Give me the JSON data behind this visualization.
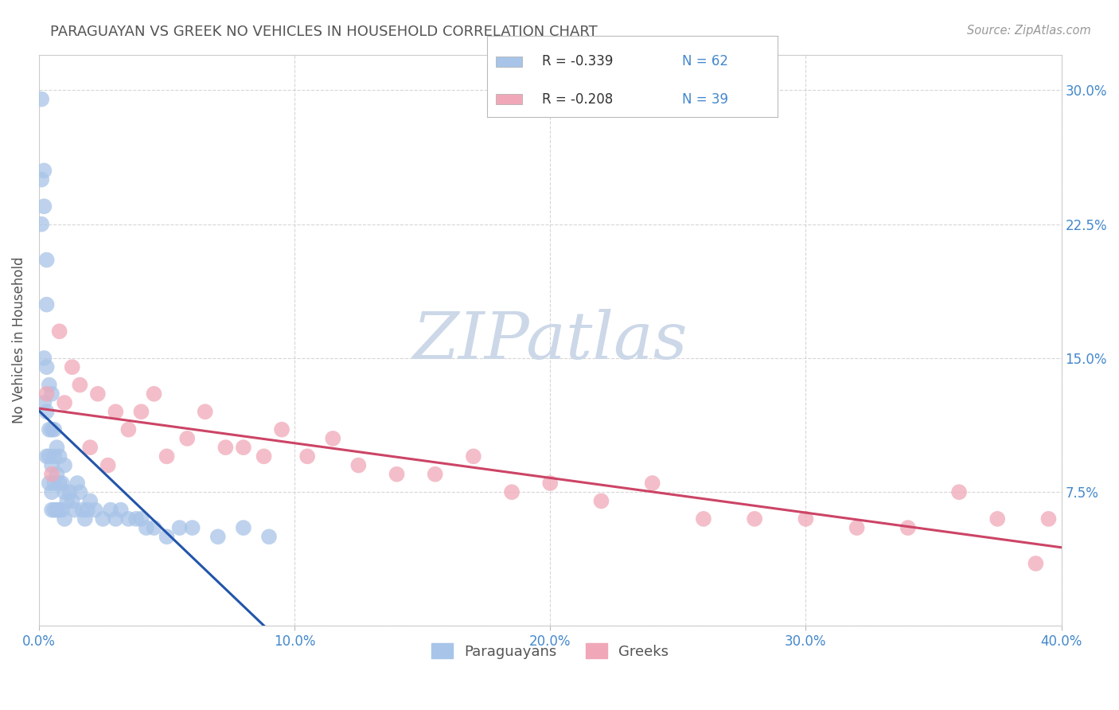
{
  "title": "PARAGUAYAN VS GREEK NO VEHICLES IN HOUSEHOLD CORRELATION CHART",
  "source_text": "Source: ZipAtlas.com",
  "ylabel": "No Vehicles in Household",
  "xlim": [
    0.0,
    0.4
  ],
  "ylim": [
    0.0,
    0.32
  ],
  "xtick_labels": [
    "0.0%",
    "10.0%",
    "20.0%",
    "30.0%",
    "40.0%"
  ],
  "xtick_vals": [
    0.0,
    0.1,
    0.2,
    0.3,
    0.4
  ],
  "ytick_labels_right": [
    "30.0%",
    "22.5%",
    "15.0%",
    "7.5%",
    ""
  ],
  "ytick_vals": [
    0.3,
    0.225,
    0.15,
    0.075,
    0.0
  ],
  "legend_labels": [
    "Paraguayans",
    "Greeks"
  ],
  "paraguayan_color": "#a8c4e8",
  "greek_color": "#f0a8b8",
  "paraguayan_line_color": "#2255aa",
  "greek_line_color": "#cc4466",
  "watermark_color": "#ccd8e8",
  "background_color": "#ffffff",
  "grid_color": "#cccccc",
  "title_color": "#555555",
  "axis_label_color": "#555555",
  "tick_label_color": "#4488cc",
  "paraguayan_x": [
    0.001,
    0.001,
    0.001,
    0.002,
    0.002,
    0.002,
    0.002,
    0.003,
    0.003,
    0.003,
    0.003,
    0.003,
    0.004,
    0.004,
    0.004,
    0.004,
    0.005,
    0.005,
    0.005,
    0.005,
    0.005,
    0.006,
    0.006,
    0.006,
    0.006,
    0.007,
    0.007,
    0.007,
    0.008,
    0.008,
    0.008,
    0.009,
    0.009,
    0.01,
    0.01,
    0.01,
    0.011,
    0.012,
    0.013,
    0.014,
    0.015,
    0.016,
    0.017,
    0.018,
    0.019,
    0.02,
    0.022,
    0.025,
    0.028,
    0.03,
    0.032,
    0.035,
    0.038,
    0.04,
    0.042,
    0.045,
    0.05,
    0.055,
    0.06,
    0.07,
    0.08,
    0.09
  ],
  "paraguayan_y": [
    0.295,
    0.25,
    0.225,
    0.255,
    0.235,
    0.15,
    0.125,
    0.205,
    0.18,
    0.145,
    0.12,
    0.095,
    0.135,
    0.11,
    0.095,
    0.08,
    0.13,
    0.11,
    0.09,
    0.075,
    0.065,
    0.11,
    0.095,
    0.08,
    0.065,
    0.1,
    0.085,
    0.065,
    0.095,
    0.08,
    0.065,
    0.08,
    0.065,
    0.09,
    0.075,
    0.06,
    0.07,
    0.075,
    0.07,
    0.065,
    0.08,
    0.075,
    0.065,
    0.06,
    0.065,
    0.07,
    0.065,
    0.06,
    0.065,
    0.06,
    0.065,
    0.06,
    0.06,
    0.06,
    0.055,
    0.055,
    0.05,
    0.055,
    0.055,
    0.05,
    0.055,
    0.05
  ],
  "greek_x": [
    0.003,
    0.005,
    0.008,
    0.01,
    0.013,
    0.016,
    0.02,
    0.023,
    0.027,
    0.03,
    0.035,
    0.04,
    0.045,
    0.05,
    0.058,
    0.065,
    0.073,
    0.08,
    0.088,
    0.095,
    0.105,
    0.115,
    0.125,
    0.14,
    0.155,
    0.17,
    0.185,
    0.2,
    0.22,
    0.24,
    0.26,
    0.28,
    0.3,
    0.32,
    0.34,
    0.36,
    0.375,
    0.39,
    0.395
  ],
  "greek_y": [
    0.13,
    0.085,
    0.165,
    0.125,
    0.145,
    0.135,
    0.1,
    0.13,
    0.09,
    0.12,
    0.11,
    0.12,
    0.13,
    0.095,
    0.105,
    0.12,
    0.1,
    0.1,
    0.095,
    0.11,
    0.095,
    0.105,
    0.09,
    0.085,
    0.085,
    0.095,
    0.075,
    0.08,
    0.07,
    0.08,
    0.06,
    0.06,
    0.06,
    0.055,
    0.055,
    0.075,
    0.06,
    0.035,
    0.06
  ]
}
